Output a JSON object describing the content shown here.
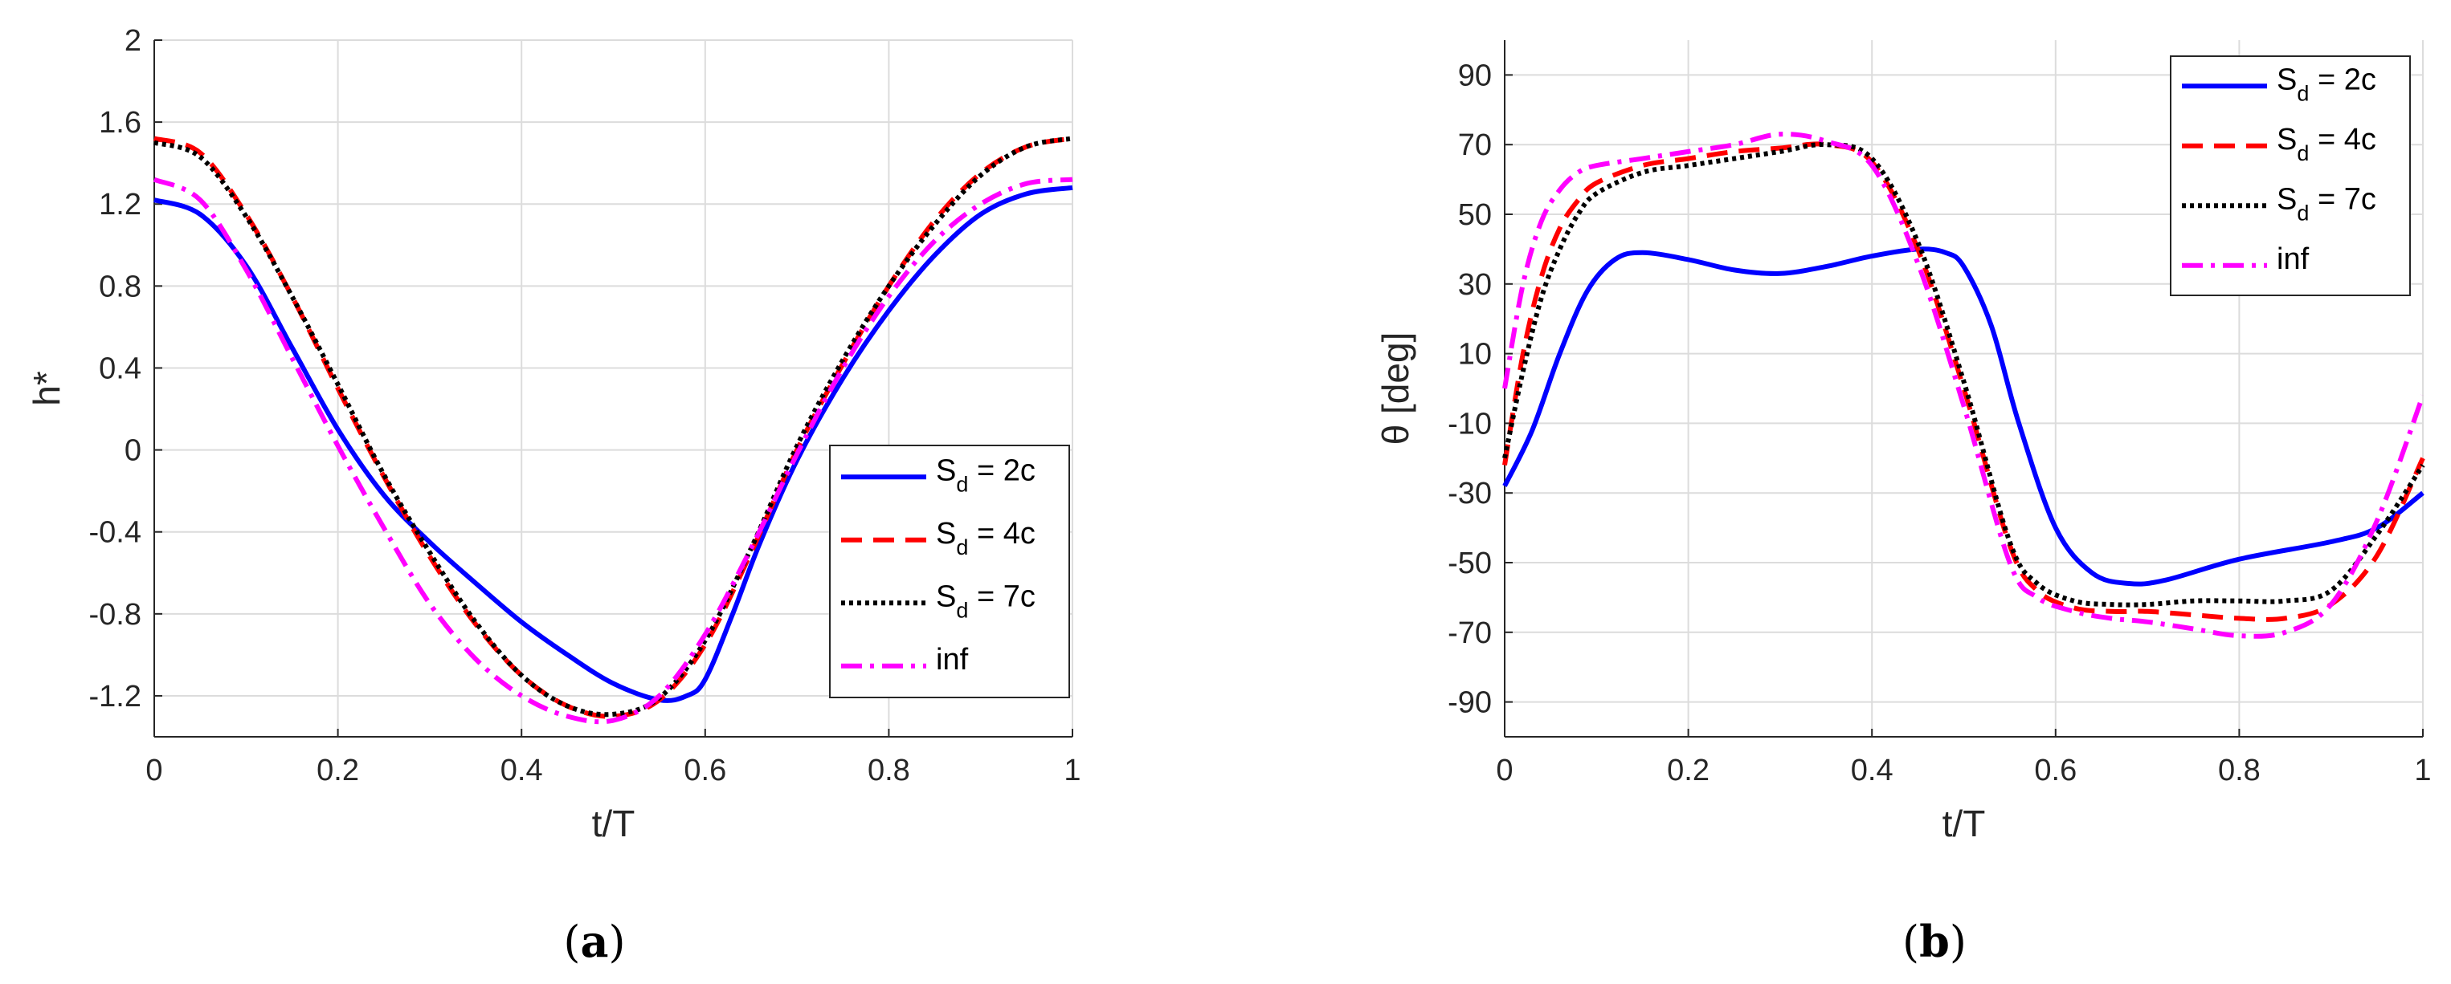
{
  "figure": {
    "panel_labels": [
      {
        "open": "(",
        "letter": "a",
        "close": ")"
      },
      {
        "open": "(",
        "letter": "b",
        "close": ")"
      }
    ]
  },
  "legend": [
    {
      "main": "S",
      "sub": "d",
      "rest": " = 2c",
      "color": "#0000ff",
      "dash": "solid"
    },
    {
      "main": "S",
      "sub": "d",
      "rest": " = 4c",
      "color": "#ff0000",
      "dash": "dashed"
    },
    {
      "main": "S",
      "sub": "d",
      "rest": " = 7c",
      "color": "#000000",
      "dash": "dotted"
    },
    {
      "main": "inf",
      "sub": "",
      "rest": "",
      "color": "#ff00ff",
      "dash": "dashdot"
    }
  ],
  "chart_data": [
    {
      "type": "line",
      "panel": "a",
      "title": "",
      "xlabel": "t/T",
      "ylabel": "h*",
      "xlim": [
        0,
        1
      ],
      "ylim": [
        -1.4,
        2
      ],
      "xticks": [
        0,
        0.2,
        0.4,
        0.6,
        0.8,
        1
      ],
      "xtick_labels": [
        "0",
        "0.2",
        "0.4",
        "0.6",
        "0.8",
        "1"
      ],
      "yticks": [
        -1.2,
        -0.8,
        -0.4,
        0,
        0.4,
        0.8,
        1.2,
        1.6,
        2
      ],
      "ytick_labels": [
        "-1.2",
        "-0.8",
        "-0.4",
        "0",
        "0.4",
        "0.8",
        "1.2",
        "1.6",
        "2"
      ],
      "grid": true,
      "legend_position": "lower-right",
      "series": [
        {
          "name": "Sd = 2c",
          "color": "#0000ff",
          "dash": "solid",
          "x": [
            0,
            0.05,
            0.1,
            0.15,
            0.2,
            0.25,
            0.3,
            0.35,
            0.4,
            0.45,
            0.5,
            0.55,
            0.58,
            0.6,
            0.63,
            0.66,
            0.7,
            0.75,
            0.8,
            0.85,
            0.9,
            0.95,
            1
          ],
          "y": [
            1.22,
            1.15,
            0.9,
            0.5,
            0.1,
            -0.22,
            -0.45,
            -0.65,
            -0.84,
            -1.0,
            -1.14,
            -1.22,
            -1.2,
            -1.12,
            -0.8,
            -0.45,
            -0.05,
            0.35,
            0.68,
            0.95,
            1.15,
            1.25,
            1.28
          ]
        },
        {
          "name": "Sd = 4c",
          "color": "#ff0000",
          "dash": "dashed",
          "x": [
            0,
            0.05,
            0.1,
            0.15,
            0.2,
            0.25,
            0.3,
            0.35,
            0.4,
            0.45,
            0.5,
            0.55,
            0.6,
            0.65,
            0.7,
            0.75,
            0.8,
            0.85,
            0.9,
            0.95,
            1
          ],
          "y": [
            1.52,
            1.45,
            1.15,
            0.75,
            0.3,
            -0.13,
            -0.52,
            -0.85,
            -1.1,
            -1.25,
            -1.3,
            -1.22,
            -0.95,
            -0.5,
            0.0,
            0.42,
            0.8,
            1.12,
            1.35,
            1.48,
            1.52
          ]
        },
        {
          "name": "Sd = 7c",
          "color": "#000000",
          "dash": "dotted",
          "x": [
            0,
            0.05,
            0.1,
            0.15,
            0.2,
            0.25,
            0.3,
            0.35,
            0.4,
            0.45,
            0.5,
            0.55,
            0.6,
            0.65,
            0.7,
            0.75,
            0.8,
            0.85,
            0.9,
            0.95,
            1
          ],
          "y": [
            1.5,
            1.43,
            1.14,
            0.75,
            0.32,
            -0.12,
            -0.5,
            -0.84,
            -1.1,
            -1.25,
            -1.29,
            -1.21,
            -0.93,
            -0.48,
            0.02,
            0.44,
            0.8,
            1.1,
            1.34,
            1.48,
            1.52
          ]
        },
        {
          "name": "inf",
          "color": "#ff00ff",
          "dash": "dashdot",
          "x": [
            0,
            0.05,
            0.1,
            0.15,
            0.2,
            0.25,
            0.3,
            0.35,
            0.4,
            0.45,
            0.5,
            0.55,
            0.6,
            0.65,
            0.7,
            0.75,
            0.8,
            0.85,
            0.9,
            0.95,
            1
          ],
          "y": [
            1.32,
            1.22,
            0.88,
            0.45,
            0.02,
            -0.38,
            -0.75,
            -1.02,
            -1.2,
            -1.3,
            -1.32,
            -1.2,
            -0.9,
            -0.48,
            -0.02,
            0.4,
            0.75,
            1.02,
            1.2,
            1.3,
            1.32
          ]
        }
      ]
    },
    {
      "type": "line",
      "panel": "b",
      "title": "",
      "xlabel": "t/T",
      "ylabel": "θ [deg]",
      "xlim": [
        0,
        1
      ],
      "ylim": [
        -100,
        100
      ],
      "xticks": [
        0,
        0.2,
        0.4,
        0.6,
        0.8,
        1
      ],
      "xtick_labels": [
        "0",
        "0.2",
        "0.4",
        "0.6",
        "0.8",
        "1"
      ],
      "yticks": [
        -90,
        -70,
        -50,
        -30,
        -10,
        10,
        30,
        50,
        70,
        90
      ],
      "ytick_labels": [
        "-90",
        "-70",
        "-50",
        "-30",
        "-10",
        "10",
        "30",
        "50",
        "70",
        "90"
      ],
      "grid": true,
      "legend_position": "top-right",
      "series": [
        {
          "name": "Sd = 2c",
          "color": "#0000ff",
          "dash": "solid",
          "x": [
            0,
            0.03,
            0.06,
            0.09,
            0.12,
            0.15,
            0.2,
            0.25,
            0.3,
            0.35,
            0.4,
            0.45,
            0.48,
            0.5,
            0.53,
            0.56,
            0.6,
            0.64,
            0.68,
            0.72,
            0.8,
            0.9,
            0.95,
            1
          ],
          "y": [
            -28,
            -12,
            10,
            28,
            37,
            39,
            37,
            34,
            33,
            35,
            38,
            40,
            39,
            35,
            18,
            -10,
            -40,
            -53,
            -56,
            -55,
            -49,
            -44,
            -40,
            -30
          ]
        },
        {
          "name": "Sd = 4c",
          "color": "#ff0000",
          "dash": "dashed",
          "x": [
            0,
            0.02,
            0.04,
            0.06,
            0.08,
            0.1,
            0.15,
            0.2,
            0.25,
            0.3,
            0.35,
            0.4,
            0.45,
            0.5,
            0.55,
            0.58,
            0.62,
            0.66,
            0.7,
            0.75,
            0.8,
            0.85,
            0.9,
            0.95,
            1
          ],
          "y": [
            -22,
            10,
            32,
            46,
            54,
            59,
            64,
            66,
            68,
            69,
            70,
            65,
            40,
            0,
            -45,
            -58,
            -63,
            -64,
            -64,
            -65,
            -66,
            -66,
            -62,
            -48,
            -20
          ]
        },
        {
          "name": "Sd = 7c",
          "color": "#000000",
          "dash": "dotted",
          "x": [
            0,
            0.02,
            0.04,
            0.06,
            0.08,
            0.1,
            0.15,
            0.2,
            0.25,
            0.3,
            0.35,
            0.4,
            0.45,
            0.5,
            0.55,
            0.58,
            0.62,
            0.66,
            0.7,
            0.75,
            0.8,
            0.85,
            0.9,
            0.95,
            1
          ],
          "y": [
            -20,
            5,
            26,
            40,
            50,
            56,
            62,
            64,
            66,
            68,
            70,
            66,
            42,
            2,
            -44,
            -56,
            -61,
            -62,
            -62,
            -61,
            -61,
            -61,
            -58,
            -42,
            -22
          ]
        },
        {
          "name": "inf",
          "color": "#ff00ff",
          "dash": "dashdot",
          "x": [
            0,
            0.02,
            0.04,
            0.06,
            0.08,
            0.1,
            0.15,
            0.2,
            0.25,
            0.3,
            0.35,
            0.4,
            0.45,
            0.5,
            0.55,
            0.58,
            0.62,
            0.66,
            0.7,
            0.75,
            0.8,
            0.85,
            0.9,
            0.95,
            1
          ],
          "y": [
            0,
            30,
            48,
            57,
            62,
            64,
            66,
            68,
            70,
            73,
            71,
            64,
            36,
            -5,
            -50,
            -60,
            -64,
            -66,
            -67,
            -69,
            -71,
            -70,
            -62,
            -38,
            -2
          ]
        }
      ]
    }
  ]
}
